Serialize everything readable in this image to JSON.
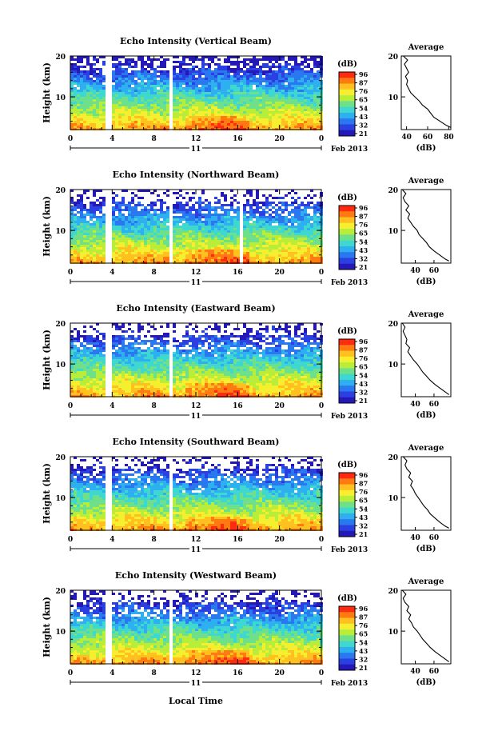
{
  "colorbar": {
    "unit": "(dB)",
    "ticks": [
      "96",
      "87",
      "76",
      "65",
      "54",
      "43",
      "32",
      "21"
    ],
    "colors": [
      "#ff2a10",
      "#ff7a10",
      "#ffc020",
      "#f5ef30",
      "#b8ee3a",
      "#6fe08a",
      "#3fd8d0",
      "#2eb0f0",
      "#2a78f0",
      "#2a40e0",
      "#2418b8"
    ]
  },
  "common": {
    "x_tick_labels": [
      "0",
      "4",
      "8",
      "12",
      "16",
      "20",
      "0"
    ],
    "y_tick_labels": [
      "20",
      "10"
    ],
    "ylabel": "Height (km)",
    "day_label": "11",
    "date_label": "Feb 2013",
    "avg_title": "Average",
    "avg_xlabel": "(dB)"
  },
  "footer": {
    "xlabel": "Local Time"
  },
  "chart_data": [
    {
      "type": "heatmap",
      "title": "Echo Intensity (Vertical Beam)",
      "x_range_hours": [
        0,
        24
      ],
      "y_range_km": [
        2,
        20
      ],
      "value_range_db": [
        21,
        96
      ],
      "data_gaps_hours": [
        3.7,
        9.6
      ],
      "average_profile": {
        "type": "line",
        "x_tick_labels": [
          "40",
          "60",
          "80"
        ],
        "x_range_db": [
          35,
          82
        ],
        "y_range_km": [
          2,
          20
        ],
        "height_km": [
          2.5,
          3,
          4,
          5,
          6,
          7,
          8,
          9,
          10,
          11,
          12,
          13,
          14,
          15,
          16,
          17,
          18,
          19,
          20
        ],
        "intensity_db": [
          82,
          78,
          72,
          66,
          63,
          60,
          55,
          52,
          48,
          44,
          42,
          40,
          41,
          39,
          42,
          40,
          38,
          41,
          37
        ]
      }
    },
    {
      "type": "heatmap",
      "title": "Echo Intensity (Northward Beam)",
      "x_range_hours": [
        0,
        24
      ],
      "y_range_km": [
        2,
        20
      ],
      "value_range_db": [
        21,
        96
      ],
      "data_gaps_hours": [
        3.7,
        9.6,
        16.3
      ],
      "average_profile": {
        "type": "line",
        "x_tick_labels": [
          "40",
          "60"
        ],
        "x_range_db": [
          25,
          78
        ],
        "y_range_km": [
          2,
          20
        ],
        "height_km": [
          2.5,
          3,
          4,
          5,
          6,
          7,
          8,
          9,
          10,
          11,
          12,
          13,
          14,
          15,
          16,
          17,
          18,
          19,
          20
        ],
        "intensity_db": [
          76,
          72,
          66,
          60,
          55,
          52,
          48,
          44,
          42,
          38,
          35,
          32,
          34,
          30,
          33,
          29,
          27,
          30,
          26
        ]
      }
    },
    {
      "type": "heatmap",
      "title": "Echo Intensity (Eastward Beam)",
      "x_range_hours": [
        0,
        24
      ],
      "y_range_km": [
        2,
        20
      ],
      "value_range_db": [
        21,
        96
      ],
      "data_gaps_hours": [
        3.7,
        9.6
      ],
      "average_profile": {
        "type": "line",
        "x_tick_labels": [
          "40",
          "60"
        ],
        "x_range_db": [
          25,
          78
        ],
        "y_range_km": [
          2,
          20
        ],
        "height_km": [
          2.5,
          3,
          4,
          5,
          6,
          7,
          8,
          9,
          10,
          11,
          12,
          13,
          14,
          15,
          16,
          17,
          18,
          19,
          20
        ],
        "intensity_db": [
          76,
          73,
          67,
          61,
          56,
          52,
          48,
          45,
          42,
          38,
          35,
          32,
          34,
          30,
          31,
          29,
          27,
          29,
          26
        ]
      }
    },
    {
      "type": "heatmap",
      "title": "Echo Intensity (Southward Beam)",
      "x_range_hours": [
        0,
        24
      ],
      "y_range_km": [
        2,
        20
      ],
      "value_range_db": [
        21,
        96
      ],
      "data_gaps_hours": [
        3.7,
        9.6
      ],
      "average_profile": {
        "type": "line",
        "x_tick_labels": [
          "40",
          "60"
        ],
        "x_range_db": [
          25,
          78
        ],
        "y_range_km": [
          2,
          20
        ],
        "height_km": [
          2.5,
          3,
          4,
          5,
          6,
          7,
          8,
          9,
          10,
          11,
          12,
          13,
          14,
          15,
          16,
          17,
          18,
          19,
          20
        ],
        "intensity_db": [
          76,
          72,
          66,
          61,
          56,
          53,
          49,
          46,
          43,
          40,
          38,
          35,
          37,
          33,
          35,
          31,
          29,
          31,
          27
        ]
      }
    },
    {
      "type": "heatmap",
      "title": "Echo Intensity (Westward Beam)",
      "x_range_hours": [
        0,
        24
      ],
      "y_range_km": [
        2,
        20
      ],
      "value_range_db": [
        21,
        96
      ],
      "data_gaps_hours": [
        3.7,
        9.6
      ],
      "average_profile": {
        "type": "line",
        "x_tick_labels": [
          "40",
          "60"
        ],
        "x_range_db": [
          25,
          78
        ],
        "y_range_km": [
          2,
          20
        ],
        "height_km": [
          2.5,
          3,
          4,
          5,
          6,
          7,
          8,
          9,
          10,
          11,
          12,
          13,
          14,
          15,
          16,
          17,
          18,
          19,
          20
        ],
        "intensity_db": [
          76,
          73,
          67,
          61,
          56,
          52,
          48,
          45,
          42,
          38,
          36,
          33,
          35,
          31,
          33,
          29,
          27,
          30,
          26
        ]
      }
    }
  ]
}
